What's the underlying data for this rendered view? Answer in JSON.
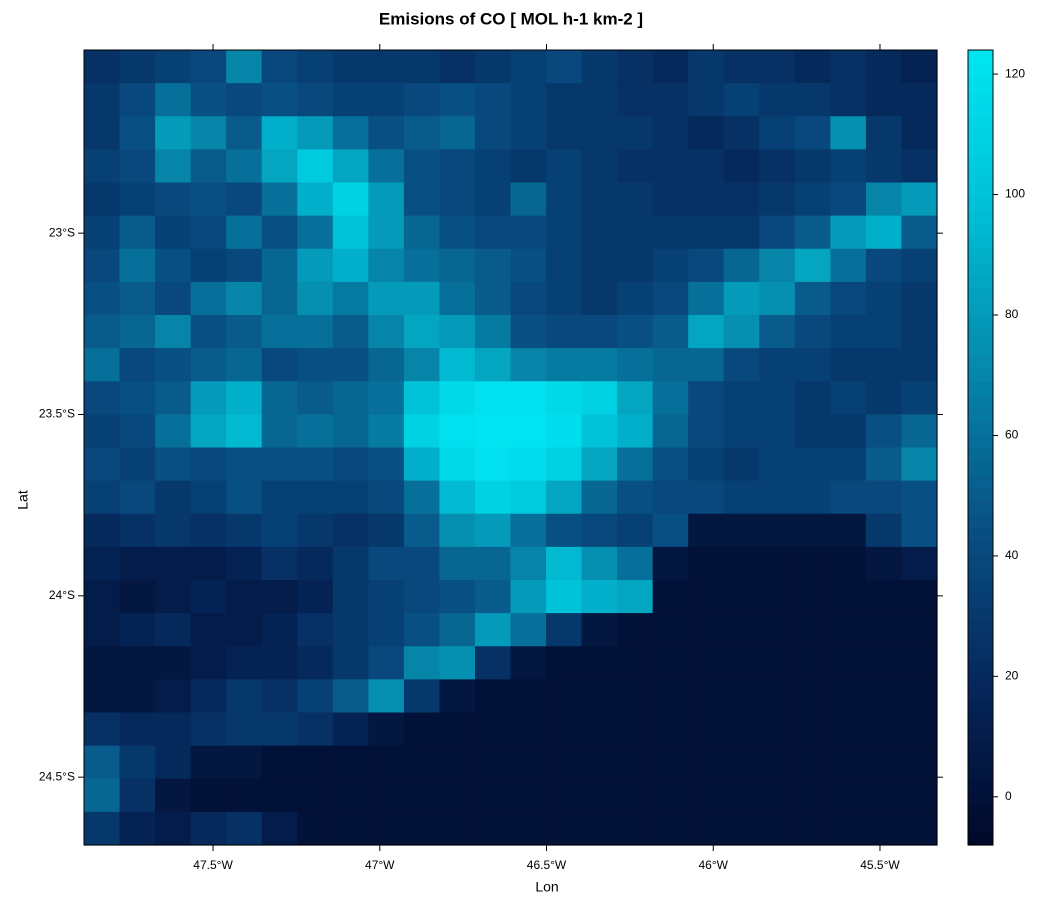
{
  "chart_data": {
    "type": "heatmap",
    "title": "Emisions of CO [ MOL h-1 km-2 ]",
    "xlabel": "Lon",
    "ylabel": "Lat",
    "xlim": [
      -47.887,
      -45.329
    ],
    "ylim": [
      -24.687,
      -22.495
    ],
    "xticks": [
      {
        "value": -47.5,
        "label": "47.5°W"
      },
      {
        "value": -47,
        "label": "47°W"
      },
      {
        "value": -46.5,
        "label": "46.5°W"
      },
      {
        "value": -46,
        "label": "46°W"
      },
      {
        "value": -45.5,
        "label": "45.5°W"
      }
    ],
    "yticks": [
      {
        "value": -23,
        "label": "23°S"
      },
      {
        "value": -23.5,
        "label": "23.5°S"
      },
      {
        "value": -24,
        "label": "24°S"
      },
      {
        "value": -24.5,
        "label": "24.5°S"
      }
    ],
    "zlim": [
      -8,
      124
    ],
    "zticks": [
      0,
      20,
      40,
      60,
      80,
      100,
      120
    ],
    "colormap": [
      "#000828",
      "#06265a",
      "#085083",
      "#0688ab",
      "#00bfd6",
      "#00e6f2"
    ],
    "values": [
      [
        25,
        30,
        35,
        40,
        70,
        40,
        35,
        30,
        30,
        30,
        25,
        30,
        35,
        40,
        30,
        25,
        20,
        30,
        25,
        25,
        20,
        25,
        20,
        15
      ],
      [
        30,
        40,
        60,
        45,
        40,
        45,
        40,
        35,
        35,
        40,
        45,
        40,
        35,
        30,
        30,
        25,
        25,
        30,
        35,
        30,
        30,
        25,
        20,
        20
      ],
      [
        30,
        45,
        80,
        70,
        50,
        90,
        80,
        60,
        45,
        50,
        55,
        40,
        35,
        30,
        30,
        30,
        25,
        20,
        25,
        35,
        40,
        75,
        30,
        20
      ],
      [
        35,
        40,
        70,
        50,
        60,
        85,
        105,
        85,
        60,
        45,
        40,
        35,
        30,
        35,
        30,
        25,
        25,
        25,
        20,
        25,
        30,
        35,
        30,
        25
      ],
      [
        30,
        35,
        40,
        45,
        40,
        60,
        90,
        110,
        80,
        45,
        40,
        35,
        55,
        35,
        30,
        30,
        25,
        25,
        25,
        30,
        35,
        40,
        70,
        80
      ],
      [
        35,
        50,
        35,
        40,
        60,
        45,
        60,
        100,
        80,
        55,
        45,
        40,
        40,
        35,
        30,
        30,
        30,
        30,
        30,
        40,
        50,
        80,
        90,
        50
      ],
      [
        40,
        60,
        45,
        35,
        40,
        55,
        80,
        90,
        70,
        60,
        55,
        50,
        45,
        35,
        30,
        30,
        35,
        40,
        55,
        70,
        85,
        60,
        40,
        35
      ],
      [
        45,
        50,
        40,
        60,
        70,
        55,
        75,
        65,
        80,
        80,
        60,
        50,
        40,
        35,
        30,
        35,
        40,
        60,
        80,
        75,
        50,
        40,
        35,
        30
      ],
      [
        50,
        55,
        70,
        45,
        50,
        60,
        60,
        50,
        70,
        85,
        80,
        65,
        45,
        40,
        40,
        45,
        50,
        85,
        75,
        50,
        40,
        35,
        35,
        30
      ],
      [
        60,
        40,
        45,
        50,
        55,
        40,
        45,
        45,
        55,
        70,
        95,
        85,
        70,
        65,
        65,
        60,
        55,
        55,
        40,
        35,
        35,
        30,
        30,
        30
      ],
      [
        40,
        45,
        50,
        80,
        90,
        55,
        50,
        55,
        60,
        100,
        115,
        120,
        120,
        115,
        110,
        85,
        60,
        40,
        35,
        35,
        30,
        35,
        30,
        35
      ],
      [
        35,
        40,
        60,
        85,
        95,
        55,
        60,
        55,
        65,
        110,
        120,
        122,
        122,
        118,
        100,
        90,
        55,
        40,
        35,
        35,
        30,
        30,
        45,
        55
      ],
      [
        40,
        35,
        45,
        40,
        45,
        45,
        45,
        40,
        45,
        90,
        115,
        120,
        118,
        110,
        85,
        60,
        45,
        35,
        30,
        35,
        35,
        35,
        50,
        70
      ],
      [
        35,
        40,
        30,
        35,
        45,
        35,
        35,
        35,
        40,
        60,
        95,
        110,
        105,
        85,
        55,
        45,
        40,
        40,
        35,
        35,
        35,
        40,
        40,
        45
      ],
      [
        20,
        25,
        30,
        25,
        30,
        35,
        30,
        25,
        30,
        50,
        75,
        80,
        60,
        45,
        40,
        35,
        45,
        5,
        5,
        5,
        5,
        5,
        30,
        45
      ],
      [
        15,
        10,
        10,
        10,
        15,
        25,
        20,
        30,
        40,
        40,
        55,
        55,
        70,
        95,
        75,
        60,
        5,
        0,
        0,
        0,
        0,
        0,
        5,
        10
      ],
      [
        10,
        5,
        10,
        15,
        10,
        10,
        15,
        30,
        35,
        40,
        45,
        50,
        80,
        100,
        90,
        85,
        0,
        0,
        0,
        0,
        0,
        0,
        0,
        0
      ],
      [
        10,
        15,
        20,
        10,
        10,
        15,
        25,
        30,
        35,
        45,
        55,
        80,
        60,
        30,
        5,
        0,
        0,
        0,
        0,
        0,
        0,
        0,
        0,
        0
      ],
      [
        5,
        5,
        5,
        10,
        15,
        15,
        20,
        30,
        40,
        70,
        75,
        25,
        5,
        0,
        0,
        0,
        0,
        0,
        0,
        0,
        0,
        0,
        0,
        0
      ],
      [
        5,
        5,
        10,
        20,
        30,
        25,
        35,
        50,
        75,
        30,
        5,
        0,
        0,
        0,
        0,
        0,
        0,
        0,
        0,
        0,
        0,
        0,
        0,
        0
      ],
      [
        25,
        20,
        20,
        25,
        30,
        30,
        25,
        15,
        5,
        0,
        0,
        0,
        0,
        0,
        0,
        0,
        0,
        0,
        0,
        0,
        0,
        0,
        0,
        0
      ],
      [
        50,
        30,
        20,
        5,
        5,
        0,
        0,
        0,
        0,
        0,
        0,
        0,
        0,
        0,
        0,
        0,
        0,
        0,
        0,
        0,
        0,
        0,
        0,
        0
      ],
      [
        55,
        25,
        5,
        0,
        0,
        0,
        0,
        0,
        0,
        0,
        0,
        0,
        0,
        0,
        0,
        0,
        0,
        0,
        0,
        0,
        0,
        0,
        0,
        0
      ],
      [
        30,
        15,
        10,
        20,
        25,
        10,
        0,
        0,
        0,
        0,
        0,
        0,
        0,
        0,
        0,
        0,
        0,
        0,
        0,
        0,
        0,
        0,
        0,
        0
      ]
    ]
  }
}
